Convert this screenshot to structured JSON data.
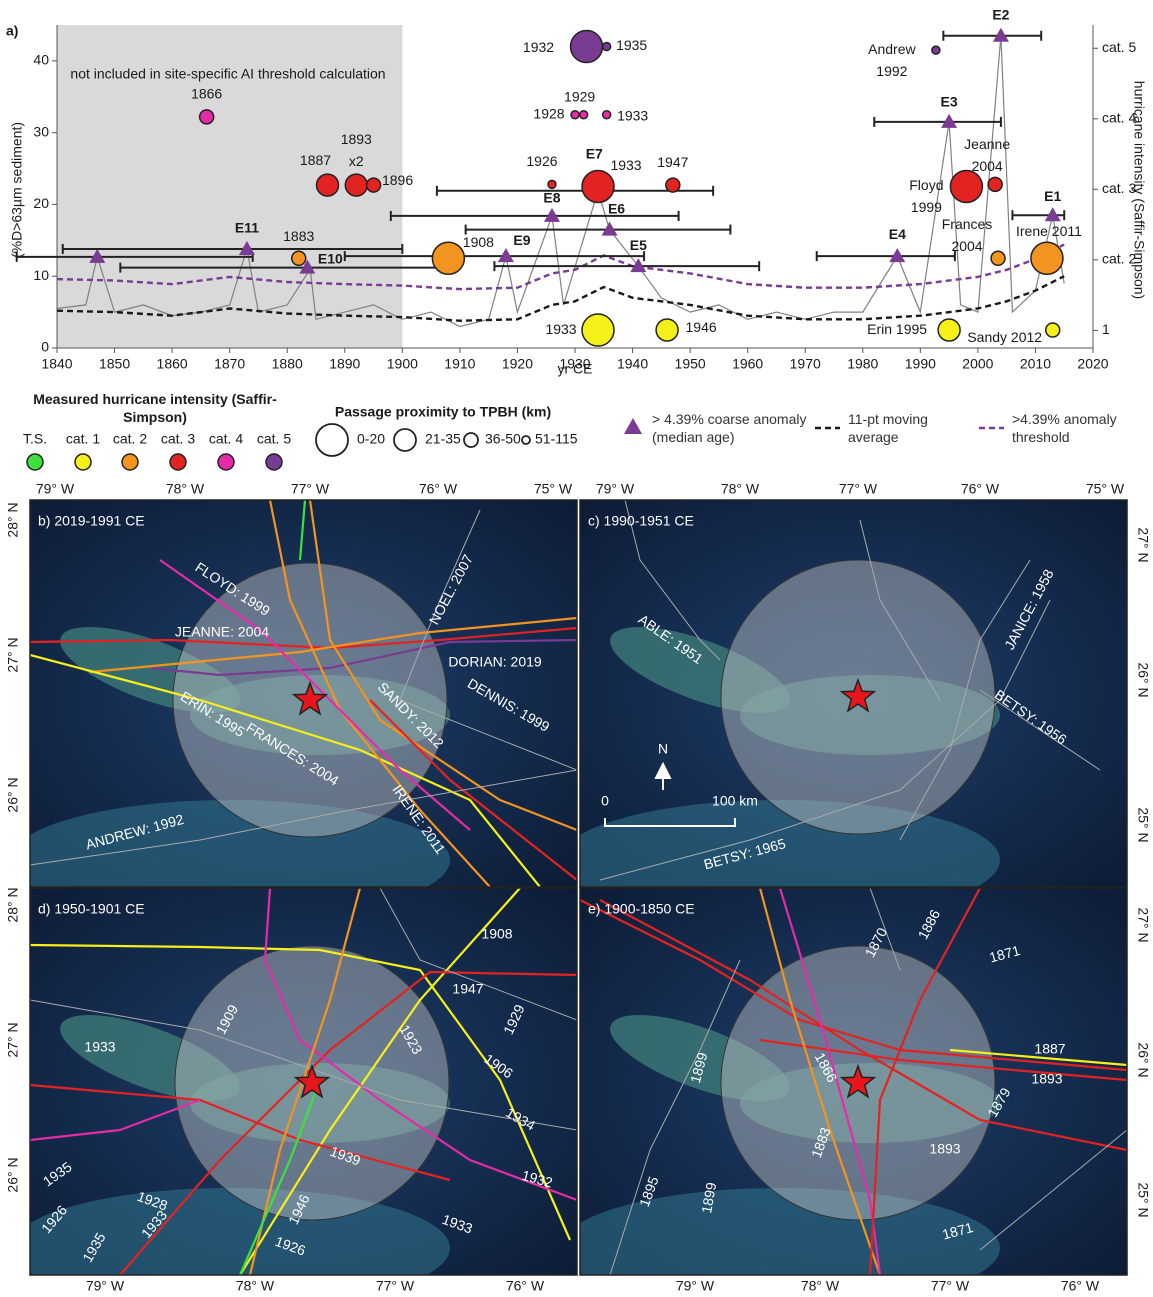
{
  "chart_data": {
    "type": "scatter",
    "panel_label": "a)",
    "annotation": "not included in site-specific AI threshold calculation",
    "excluded_range": [
      1840,
      1900
    ],
    "xlabel": "yr CE",
    "ylabel": "(%D>63µm sediment)",
    "y2label": "hurricane intensity (Saffir-Simpson)",
    "xlim": [
      1840,
      2020
    ],
    "xticks": [
      1840,
      1850,
      1860,
      1870,
      1880,
      1890,
      1900,
      1910,
      1920,
      1930,
      1940,
      1950,
      1960,
      1970,
      1980,
      1990,
      2000,
      2010,
      2020
    ],
    "ylim": [
      0,
      45
    ],
    "yticks": [
      0,
      10,
      20,
      30,
      40
    ],
    "y2lim": [
      0.75,
      5.33
    ],
    "y2ticks": [
      1,
      {
        "value": 2,
        "label": "cat. 2"
      },
      {
        "value": 3,
        "label": "cat. 3"
      },
      {
        "value": 4,
        "label": "cat. 4"
      },
      {
        "value": 5,
        "label": "cat. 5"
      }
    ],
    "intensity_legend": {
      "title": "Measured hurricane intensity (Saffir-Simpson)",
      "items": [
        {
          "label": "T.S.",
          "color": "#3ee03e"
        },
        {
          "label": "cat. 1",
          "color": "#f5ef1a"
        },
        {
          "label": "cat. 2",
          "color": "#f39320"
        },
        {
          "label": "cat. 3",
          "color": "#e32222"
        },
        {
          "label": "cat. 4",
          "color": "#e62ba8"
        },
        {
          "label": "cat. 5",
          "color": "#7a3b92"
        }
      ]
    },
    "proximity_legend": {
      "title": "Passage proximity to TPBH (km)",
      "items": [
        {
          "label": "0-20"
        },
        {
          "label": "21-35"
        },
        {
          "label": "36-50"
        },
        {
          "label": "51-115"
        }
      ]
    },
    "points": [
      {
        "label": [
          "1866"
        ],
        "x": 1866,
        "y": 32.2,
        "category": "cat. 4",
        "proximity": "36-50"
      },
      {
        "label": [
          "1887"
        ],
        "x": 1887,
        "y": 22.7,
        "category": "cat. 3",
        "proximity": "21-35"
      },
      {
        "label": [
          "1893",
          "x2"
        ],
        "x": 1892,
        "y": 22.7,
        "category": "cat. 3",
        "proximity": "21-35"
      },
      {
        "label": [
          "1896"
        ],
        "x": 1895,
        "y": 22.7,
        "category": "cat. 3",
        "proximity": "36-50"
      },
      {
        "label": [
          "1883"
        ],
        "x": 1882,
        "y": 12.5,
        "category": "cat. 2",
        "proximity": "36-50"
      },
      {
        "label": [
          "1908"
        ],
        "x": 1908,
        "y": 12.5,
        "category": "cat. 2",
        "proximity": "0-20"
      },
      {
        "label": [
          "1926"
        ],
        "x": 1926,
        "y": 22.8,
        "category": "cat. 3",
        "proximity": "51-115"
      },
      {
        "label": [
          "1928"
        ],
        "x": 1930,
        "y": 32.5,
        "category": "cat. 4",
        "proximity": "51-115"
      },
      {
        "label": [
          "1929"
        ],
        "x": 1931.5,
        "y": 32.5,
        "category": "cat. 4",
        "proximity": "51-115"
      },
      {
        "label": [
          "1933"
        ],
        "x": 1935.5,
        "y": 32.5,
        "category": "cat. 4",
        "proximity": "51-115"
      },
      {
        "label": [
          "1932"
        ],
        "x": 1932,
        "y": 42,
        "category": "cat. 5",
        "proximity": "0-20"
      },
      {
        "label": [
          "1935"
        ],
        "x": 1935.5,
        "y": 42,
        "category": "cat. 5",
        "proximity": "51-115"
      },
      {
        "label": [
          "1933"
        ],
        "x": 1934,
        "y": 22.5,
        "category": "cat. 3",
        "proximity": "0-20"
      },
      {
        "label": [
          "1947"
        ],
        "x": 1947,
        "y": 22.7,
        "category": "cat. 3",
        "proximity": "36-50"
      },
      {
        "label": [
          "1933"
        ],
        "x": 1934,
        "y": 2.5,
        "category": "cat. 1",
        "proximity": "0-20"
      },
      {
        "label": [
          "1946"
        ],
        "x": 1946,
        "y": 2.5,
        "category": "cat. 1",
        "proximity": "21-35"
      },
      {
        "label": [
          "Andrew",
          "1992"
        ],
        "x": 1992.7,
        "y": 41.5,
        "category": "cat. 5",
        "proximity": "51-115"
      },
      {
        "label": [
          "Floyd",
          "1999"
        ],
        "x": 1998,
        "y": 22.5,
        "category": "cat. 3",
        "proximity": "0-20"
      },
      {
        "label": [
          "Jeanne",
          "2004"
        ],
        "x": 2003,
        "y": 22.8,
        "category": "cat. 3",
        "proximity": "36-50"
      },
      {
        "label": [
          "Frances",
          "2004"
        ],
        "x": 2003.5,
        "y": 12.5,
        "category": "cat. 2",
        "proximity": "36-50"
      },
      {
        "label": [
          "Irene 2011"
        ],
        "x": 2012,
        "y": 12.5,
        "category": "cat. 2",
        "proximity": "0-20"
      },
      {
        "label": [
          "Erin 1995"
        ],
        "x": 1995,
        "y": 2.5,
        "category": "cat. 1",
        "proximity": "21-35"
      },
      {
        "label": [
          "Sandy 2012"
        ],
        "x": 2013,
        "y": 2.5,
        "category": "cat. 1",
        "proximity": "36-50"
      }
    ],
    "anomaly_legend": "> 4.39% coarse anomaly (median age)",
    "anomaly_color": "#7a3b92",
    "anomalies": [
      {
        "label": null,
        "x": 1847,
        "y": 12.7,
        "range": [
          1833,
          1874
        ]
      },
      {
        "label": "E11",
        "x": 1873,
        "y": 13.8,
        "range": [
          1841,
          1900
        ]
      },
      {
        "label": "E10",
        "x": 1883.5,
        "y": 11.2,
        "range": [
          1851,
          1909
        ]
      },
      {
        "label": "E9",
        "x": 1918,
        "y": 12.8,
        "range": [
          1890,
          1942
        ]
      },
      {
        "label": "E8",
        "x": 1926,
        "y": 18.4,
        "range": [
          1898,
          1948
        ]
      },
      {
        "label": "E7",
        "x": 1933,
        "y": 21.9,
        "range": [
          1906,
          1954
        ]
      },
      {
        "label": "E6",
        "x": 1936,
        "y": 16.5,
        "range": [
          1911,
          1957
        ]
      },
      {
        "label": "E5",
        "x": 1941,
        "y": 11.4,
        "range": [
          1916,
          1962
        ]
      },
      {
        "label": "E4",
        "x": 1986,
        "y": 12.8,
        "range": [
          1972,
          1996
        ]
      },
      {
        "label": "E3",
        "x": 1995,
        "y": 31.5,
        "range": [
          1982,
          2004
        ]
      },
      {
        "label": "E2",
        "x": 2004,
        "y": 43.5,
        "range": [
          1994,
          2011
        ]
      },
      {
        "label": "E1",
        "x": 2013,
        "y": 18.5,
        "range": [
          2006,
          2015
        ]
      }
    ],
    "sediment": {
      "color": "#808080",
      "x": [
        1840,
        1845,
        1847,
        1850,
        1855,
        1860,
        1865,
        1870,
        1873,
        1875,
        1880,
        1884,
        1885,
        1890,
        1895,
        1900,
        1905,
        1910,
        1915,
        1918,
        1920,
        1926,
        1928,
        1934,
        1936,
        1941,
        1945,
        1950,
        1955,
        1960,
        1965,
        1970,
        1975,
        1980,
        1986,
        1990,
        1995,
        1997,
        2000,
        2004,
        2006,
        2010,
        2013,
        2015
      ],
      "values": [
        5.5,
        6,
        12.7,
        5,
        6,
        4.5,
        5,
        6,
        13.8,
        5,
        6,
        11,
        4,
        5,
        6,
        4,
        5,
        3,
        4,
        12.8,
        5,
        18.4,
        6,
        21.9,
        16.5,
        11.4,
        7,
        5,
        6,
        4,
        5,
        4,
        5,
        5,
        12.8,
        5,
        31.5,
        6,
        5,
        43.5,
        5,
        8,
        18.5,
        9
      ]
    },
    "series": [
      {
        "name": "11-pt moving average",
        "color": "#1a1a1a",
        "x": [
          1840,
          1850,
          1860,
          1870,
          1880,
          1890,
          1900,
          1910,
          1920,
          1926,
          1930,
          1935,
          1940,
          1950,
          1960,
          1970,
          1980,
          1990,
          2000,
          2005,
          2010,
          2015
        ],
        "values": [
          5.2,
          5,
          4.5,
          5.5,
          4.8,
          4.5,
          4.3,
          3.8,
          4,
          6,
          6.5,
          8.5,
          7,
          6,
          4.5,
          4,
          4,
          4.5,
          5.5,
          6.5,
          8,
          10
        ]
      },
      {
        "name": ">4.39% anomaly threshold",
        "color": "#7a3b92",
        "x": [
          1840,
          1850,
          1860,
          1870,
          1880,
          1890,
          1900,
          1910,
          1920,
          1926,
          1930,
          1935,
          1940,
          1950,
          1960,
          1970,
          1980,
          1990,
          2000,
          2005,
          2010,
          2015
        ],
        "values": [
          9.6,
          9.4,
          8.9,
          9.9,
          9.2,
          8.9,
          8.7,
          8.2,
          8.4,
          10.4,
          10.9,
          12.9,
          11.4,
          10.4,
          8.9,
          8.4,
          8.4,
          8.9,
          9.9,
          10.9,
          12.4,
          14.4
        ]
      }
    ]
  },
  "maps": [
    {
      "title": "b) 2019-1991 CE",
      "top_ticks": [
        "79° W",
        "78° W",
        "77° W",
        "76° W",
        "75° W"
      ],
      "side_ticks": [
        "28° N",
        "27° N",
        "26° N"
      ],
      "labels": [
        "FLOYD: 1999",
        "JEANNE: 2004",
        "NOEL: 2007",
        "DORIAN: 2019",
        "ERIN: 1995",
        "SANDY: 2012",
        "DENNIS: 1999",
        "FRANCES: 2004",
        "IRENE: 2011",
        "ANDREW: 1992"
      ]
    },
    {
      "title": "c) 1990-1951 CE",
      "top_ticks": [
        "79° W",
        "78° W",
        "77° W",
        "76° W",
        "75° W"
      ],
      "side_ticks": [
        "27° N",
        "26° N",
        "25° N"
      ],
      "labels": [
        "ABLE: 1951",
        "JANICE: 1958",
        "BETSY: 1956",
        "BETSY: 1965",
        "N",
        "0",
        "100  km"
      ]
    },
    {
      "title": "d) 1950-1901 CE",
      "bottom_ticks": [
        "79° W",
        "78° W",
        "77° W",
        "76° W"
      ],
      "side_ticks": [
        "28° N",
        "27° N",
        "26° N"
      ],
      "labels": [
        "1908",
        "1947",
        "1929",
        "1909",
        "1933",
        "1923",
        "1906",
        "1934",
        "1939",
        "1932",
        "1935",
        "1928",
        "1926",
        "1946",
        "1933",
        "1933",
        "1935",
        "1926"
      ]
    },
    {
      "title": "e) 1900-1850 CE",
      "bottom_ticks": [
        "79° W",
        "78° W",
        "77° W",
        "76° W"
      ],
      "side_ticks": [
        "27° N",
        "26° N",
        "25° N"
      ],
      "labels": [
        "1870",
        "1886",
        "1871",
        "1899",
        "1866",
        "1887",
        "1893",
        "1879",
        "1883",
        "1893",
        "1895",
        "1899",
        "1871"
      ]
    }
  ]
}
